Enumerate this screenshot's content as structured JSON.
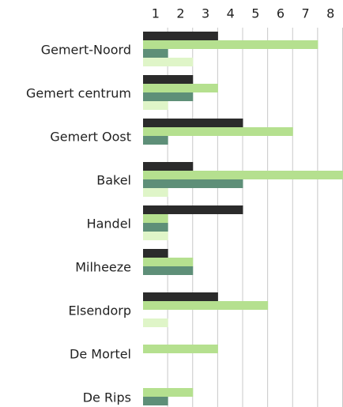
{
  "chart_data": {
    "type": "bar",
    "orientation": "horizontal",
    "categories": [
      "Gemert-Noord",
      "Gemert centrum",
      "Gemert Oost",
      "Bakel",
      "Handel",
      "Milheeze",
      "Elsendorp",
      "De Mortel",
      "De Rips"
    ],
    "series": [
      {
        "color": "#2b2b2b",
        "values": [
          3,
          2,
          4,
          2,
          4,
          1,
          3,
          0,
          0
        ]
      },
      {
        "color": "#b5e08f",
        "values": [
          7,
          3,
          6,
          8,
          1,
          2,
          5,
          3,
          2
        ]
      },
      {
        "color": "#5e8f78",
        "values": [
          1,
          2,
          1,
          4,
          1,
          2,
          0,
          0,
          1
        ]
      },
      {
        "color": "#dff5c8",
        "values": [
          2,
          1,
          0,
          1,
          1,
          0,
          1,
          0,
          0
        ]
      }
    ],
    "xlim": [
      0,
      8
    ],
    "xticks": [
      1,
      2,
      3,
      4,
      5,
      6,
      7,
      8
    ],
    "grid": true,
    "xaxis_position": "top"
  }
}
